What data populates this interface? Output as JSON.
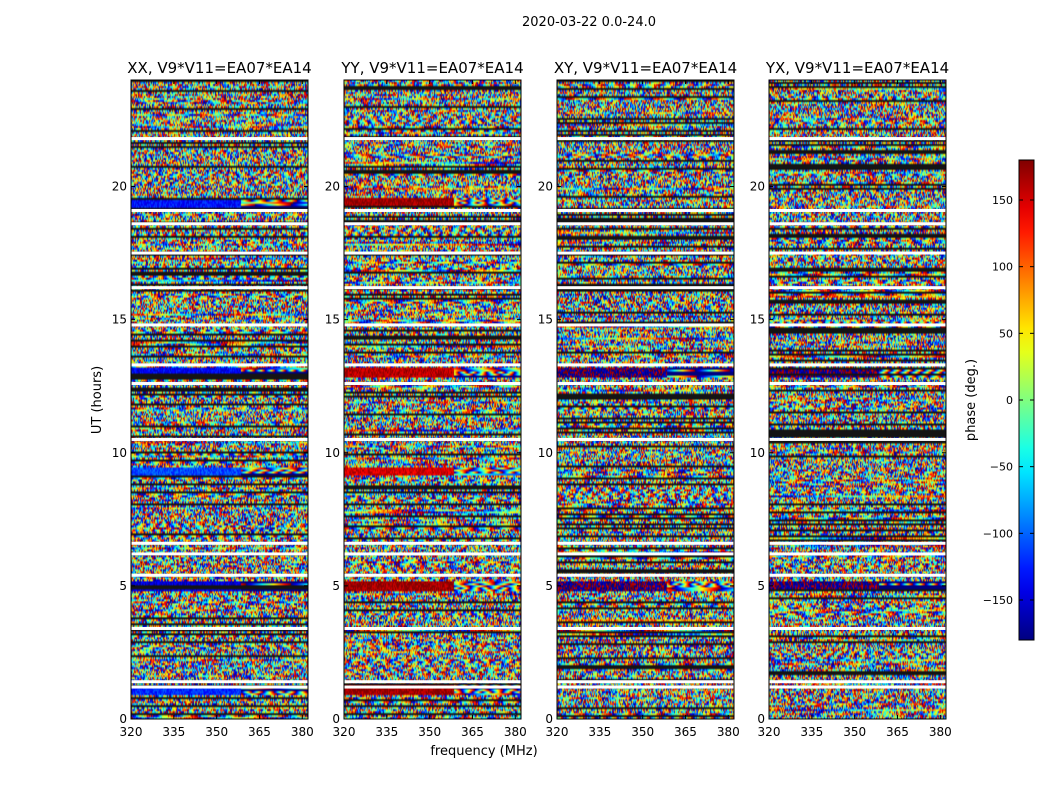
{
  "figure_title": "2020-03-22 0.0-24.0",
  "chart_data": {
    "type": "heatmap",
    "suptitle": "2020-03-22 0.0-24.0",
    "xlabel": "frequency (MHz)",
    "ylabel": "UT (hours)",
    "xlim": [
      320,
      382
    ],
    "ylim": [
      0,
      24
    ],
    "xticks": [
      320,
      335,
      350,
      365,
      380
    ],
    "yticks": [
      0,
      5,
      10,
      15,
      20
    ],
    "panels": [
      {
        "title": "XX, V9*V11=EA07*EA14",
        "pol": "XX"
      },
      {
        "title": "YY, V9*V11=EA07*EA14",
        "pol": "YY"
      },
      {
        "title": "XY, V9*V11=EA07*EA14",
        "pol": "XY"
      },
      {
        "title": "YX, V9*V11=EA07*EA14",
        "pol": "YX"
      }
    ],
    "colorbar": {
      "label": "phase (deg.)",
      "range": [
        -180,
        180
      ],
      "ticks": [
        -150,
        -100,
        -50,
        0,
        50,
        100,
        150
      ],
      "tick_labels": [
        "−150",
        "−100",
        "−50",
        "0",
        "50",
        "100",
        "150"
      ],
      "colormap": "jet"
    },
    "flagged_ut_hours": [
      21.8,
      19.1,
      18.6,
      17.5,
      16.2,
      14.8,
      13.3,
      12.6,
      10.5,
      6.6,
      6.2,
      5.4,
      3.4,
      1.4,
      1.2
    ],
    "bright_bands": [
      {
        "ut": 19.4,
        "panels": [
          "XX",
          "YY"
        ],
        "xx_phase": -130,
        "yy_phase": 170
      },
      {
        "ut": 13.0,
        "panels": [
          "XX",
          "YY",
          "XY",
          "YX"
        ],
        "xx_phase": -140,
        "yy_phase": 160
      },
      {
        "ut": 9.3,
        "panels": [
          "XX",
          "YY"
        ],
        "xx_phase": -110,
        "yy_phase": 150
      },
      {
        "ut": 5.0,
        "panels": [
          "XX",
          "YY",
          "XY",
          "YX"
        ],
        "xx_phase": -150,
        "yy_phase": 170
      },
      {
        "ut": 1.1,
        "panels": [
          "XX",
          "YY"
        ],
        "xx_phase": -120,
        "yy_phase": 170
      }
    ]
  }
}
